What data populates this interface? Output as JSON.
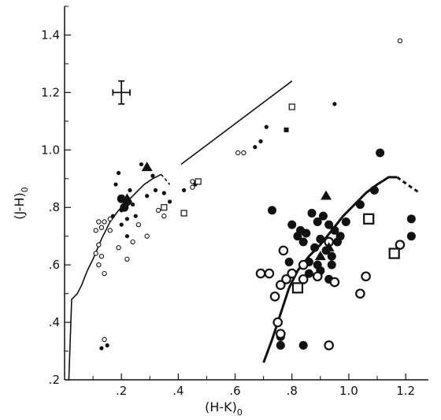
{
  "chart_data": {
    "type": "scatter",
    "title": "",
    "xlabel": {
      "main": "(H-K)",
      "sub": "0"
    },
    "ylabel": {
      "main": "(J-H)",
      "sub": "0"
    },
    "xlim": [
      0.0,
      1.28
    ],
    "ylim": [
      0.2,
      1.5
    ],
    "xticks": [
      {
        "value": 0.2,
        "label": ".2"
      },
      {
        "value": 0.4,
        "label": ".4"
      },
      {
        "value": 0.6,
        "label": ".6"
      },
      {
        "value": 0.8,
        "label": ".8"
      },
      {
        "value": 1.0,
        "label": "1.0"
      },
      {
        "value": 1.2,
        "label": "1.2"
      }
    ],
    "yticks": [
      {
        "value": 0.2,
        "label": ".2"
      },
      {
        "value": 0.4,
        "label": ".4"
      },
      {
        "value": 0.6,
        "label": ".6"
      },
      {
        "value": 0.8,
        "label": ".8"
      },
      {
        "value": 1.0,
        "label": "1.0"
      },
      {
        "value": 1.2,
        "label": "1.2"
      },
      {
        "value": 1.4,
        "label": "1.4"
      }
    ],
    "grid": false,
    "legend": "none",
    "error_bar": {
      "x": 0.2,
      "y": 1.2,
      "dx": 0.03,
      "dy": 0.04
    },
    "lines": [
      {
        "style": "solid-thin",
        "points": [
          [
            0.015,
            0.2
          ],
          [
            0.025,
            0.48
          ],
          [
            0.045,
            0.5
          ],
          [
            0.06,
            0.53
          ],
          [
            0.08,
            0.58
          ],
          [
            0.1,
            0.62
          ],
          [
            0.13,
            0.69
          ],
          [
            0.16,
            0.75
          ],
          [
            0.19,
            0.79
          ],
          [
            0.22,
            0.82
          ],
          [
            0.25,
            0.85
          ],
          [
            0.28,
            0.88
          ],
          [
            0.31,
            0.9
          ],
          [
            0.34,
            0.915
          ]
        ]
      },
      {
        "style": "dashed-thin",
        "points": [
          [
            0.34,
            0.915
          ],
          [
            0.37,
            0.88
          ]
        ]
      },
      {
        "style": "solid-thin",
        "points": [
          [
            0.41,
            0.95
          ],
          [
            0.8,
            1.24
          ]
        ]
      },
      {
        "style": "solid-thick",
        "points": [
          [
            0.7,
            0.26
          ],
          [
            0.73,
            0.34
          ],
          [
            0.76,
            0.43
          ],
          [
            0.79,
            0.52
          ],
          [
            0.82,
            0.58
          ],
          [
            0.86,
            0.63
          ],
          [
            0.9,
            0.67
          ],
          [
            0.94,
            0.72
          ],
          [
            0.98,
            0.77
          ],
          [
            1.02,
            0.81
          ],
          [
            1.06,
            0.85
          ],
          [
            1.1,
            0.88
          ],
          [
            1.14,
            0.905
          ],
          [
            1.17,
            0.905
          ]
        ]
      },
      {
        "style": "dashed-thick",
        "points": [
          [
            1.17,
            0.905
          ],
          [
            1.22,
            0.87
          ],
          [
            1.25,
            0.85
          ]
        ]
      }
    ],
    "series": [
      {
        "marker": "filled-circle-small",
        "points": [
          [
            0.19,
            0.92
          ],
          [
            0.27,
            0.95
          ],
          [
            0.31,
            0.91
          ],
          [
            0.18,
            0.88
          ],
          [
            0.23,
            0.86
          ],
          [
            0.29,
            0.84
          ],
          [
            0.32,
            0.86
          ],
          [
            0.24,
            0.81
          ],
          [
            0.2,
            0.79
          ],
          [
            0.17,
            0.77
          ],
          [
            0.22,
            0.76
          ],
          [
            0.25,
            0.77
          ],
          [
            0.35,
            0.85
          ],
          [
            0.37,
            0.82
          ],
          [
            0.42,
            0.86
          ],
          [
            0.46,
            0.88
          ],
          [
            0.2,
            0.74
          ],
          [
            0.22,
            0.7
          ],
          [
            0.13,
            0.31
          ],
          [
            0.15,
            0.32
          ],
          [
            0.67,
            1.01
          ],
          [
            0.69,
            1.03
          ],
          [
            0.71,
            1.08
          ],
          [
            0.95,
            1.16
          ]
        ]
      },
      {
        "marker": "filled-circle-large",
        "points": [
          [
            0.2,
            0.83
          ],
          [
            0.22,
            0.82
          ],
          [
            0.21,
            0.8
          ],
          [
            0.73,
            0.79
          ],
          [
            0.8,
            0.74
          ],
          [
            0.83,
            0.72
          ],
          [
            0.85,
            0.71
          ],
          [
            0.87,
            0.78
          ],
          [
            0.89,
            0.75
          ],
          [
            0.91,
            0.77
          ],
          [
            0.93,
            0.74
          ],
          [
            0.95,
            0.72
          ],
          [
            0.97,
            0.7
          ],
          [
            0.99,
            0.75
          ],
          [
            0.84,
            0.68
          ],
          [
            0.88,
            0.66
          ],
          [
            0.9,
            0.69
          ],
          [
            0.92,
            0.65
          ],
          [
            0.86,
            0.61
          ],
          [
            0.89,
            0.6
          ],
          [
            0.94,
            0.63
          ],
          [
            0.96,
            0.68
          ],
          [
            1.04,
            0.81
          ],
          [
            0.79,
            0.61
          ],
          [
            0.9,
            0.58
          ],
          [
            0.93,
            0.55
          ],
          [
            0.86,
            0.57
          ],
          [
            0.76,
            0.35
          ],
          [
            0.76,
            0.32
          ],
          [
            0.84,
            0.32
          ],
          [
            1.11,
            0.99
          ],
          [
            1.22,
            0.76
          ],
          [
            1.22,
            0.7
          ],
          [
            1.09,
            0.86
          ],
          [
            0.82,
            0.7
          ],
          [
            0.94,
            0.6
          ]
        ]
      },
      {
        "marker": "open-circle-small",
        "points": [
          [
            0.12,
            0.75
          ],
          [
            0.14,
            0.75
          ],
          [
            0.11,
            0.72
          ],
          [
            0.13,
            0.73
          ],
          [
            0.16,
            0.72
          ],
          [
            0.12,
            0.67
          ],
          [
            0.11,
            0.64
          ],
          [
            0.13,
            0.63
          ],
          [
            0.12,
            0.6
          ],
          [
            0.14,
            0.57
          ],
          [
            0.19,
            0.66
          ],
          [
            0.24,
            0.68
          ],
          [
            0.26,
            0.74
          ],
          [
            0.29,
            0.7
          ],
          [
            0.22,
            0.62
          ],
          [
            0.16,
            0.76
          ],
          [
            0.33,
            0.79
          ],
          [
            0.35,
            0.77
          ],
          [
            0.45,
            0.89
          ],
          [
            0.45,
            0.87
          ],
          [
            0.61,
            0.99
          ],
          [
            0.63,
            0.99
          ],
          [
            0.14,
            0.34
          ],
          [
            1.18,
            1.38
          ]
        ]
      },
      {
        "marker": "open-circle-large",
        "points": [
          [
            0.74,
            0.49
          ],
          [
            0.76,
            0.53
          ],
          [
            0.78,
            0.55
          ],
          [
            0.8,
            0.57
          ],
          [
            0.84,
            0.6
          ],
          [
            0.77,
            0.65
          ],
          [
            0.69,
            0.57
          ],
          [
            0.72,
            0.57
          ],
          [
            0.75,
            0.4
          ],
          [
            0.76,
            0.36
          ],
          [
            0.84,
            0.55
          ],
          [
            0.89,
            0.56
          ],
          [
            0.93,
            0.32
          ],
          [
            0.95,
            0.54
          ],
          [
            1.04,
            0.5
          ],
          [
            1.06,
            0.56
          ],
          [
            1.18,
            0.67
          ],
          [
            0.93,
            0.68
          ]
        ]
      },
      {
        "marker": "filled-triangle",
        "points": [
          [
            0.29,
            0.94
          ],
          [
            0.22,
            0.83
          ],
          [
            0.92,
            0.84
          ],
          [
            0.9,
            0.63
          ],
          [
            0.93,
            0.66
          ]
        ]
      },
      {
        "marker": "filled-square",
        "points": [
          [
            0.78,
            1.07
          ]
        ]
      },
      {
        "marker": "open-square-small",
        "points": [
          [
            0.8,
            1.15
          ],
          [
            0.47,
            0.89
          ],
          [
            0.35,
            0.8
          ],
          [
            0.42,
            0.78
          ]
        ]
      },
      {
        "marker": "open-square-large",
        "points": [
          [
            1.07,
            0.76
          ],
          [
            1.16,
            0.64
          ],
          [
            0.82,
            0.52
          ]
        ]
      }
    ]
  }
}
